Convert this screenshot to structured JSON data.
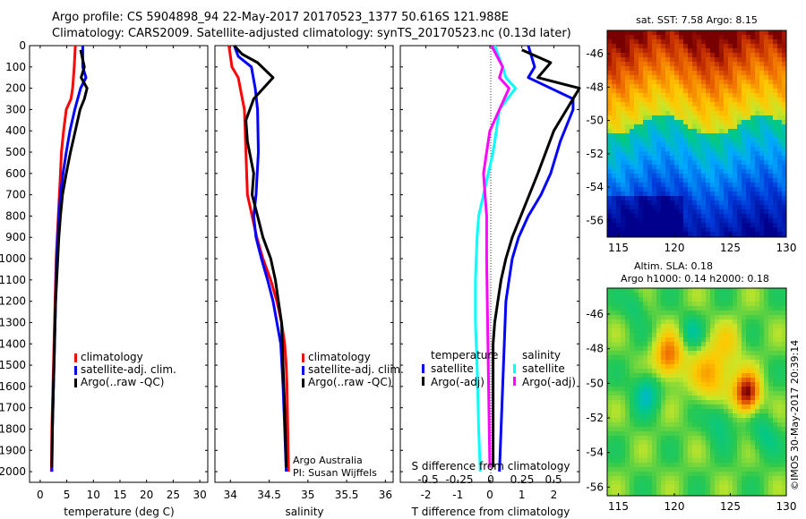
{
  "header": {
    "line1": "Argo profile: CS 5904898_94 22-May-2017 20170523_1377 50.616S 121.988E",
    "line2": "Climatology: CARS2009. Satellite-adjusted climatology: synTS_20170523.nc (0.13d later)"
  },
  "colors": {
    "climatology": "#ff0000",
    "satellite_adj": "#0000ff",
    "argo": "#000000",
    "satellite_s": "#00ffff",
    "argo_s": "#ff00ff"
  },
  "chart_data": [
    {
      "type": "line",
      "xlabel": "temperature (deg C)",
      "xlim": [
        -2,
        31.5
      ],
      "ylim": [
        2050,
        0
      ],
      "yticks": [
        "0",
        "100",
        "200",
        "300",
        "400",
        "500",
        "600",
        "700",
        "800",
        "900",
        "1000",
        "1100",
        "1200",
        "1300",
        "1400",
        "1500",
        "1600",
        "1700",
        "1800",
        "1900",
        "2000"
      ],
      "xticks": [
        "0",
        "5",
        "10",
        "15",
        "20",
        "25",
        "30"
      ],
      "legend": [
        "climatology",
        "satellite-adj. clim.",
        "Argo(..raw -QC)"
      ],
      "series": [
        {
          "name": "climatology",
          "color": "#ff0000",
          "x": [
            6.6,
            6.4,
            6.1,
            5.8,
            4.9,
            4.4,
            4.0,
            3.8,
            3.6,
            3.4,
            3.2,
            3.0,
            2.9,
            2.8,
            2.7,
            2.6,
            2.5,
            2.4,
            2.3,
            2.2,
            2.1
          ],
          "y": [
            0,
            100,
            200,
            250,
            300,
            400,
            500,
            600,
            700,
            800,
            900,
            1000,
            1100,
            1200,
            1300,
            1400,
            1500,
            1600,
            1700,
            1800,
            2000
          ]
        },
        {
          "name": "satellite-adj. clim.",
          "color": "#0000ff",
          "x": [
            8.0,
            8.0,
            8.6,
            7.6,
            6.5,
            5.6,
            4.9,
            4.3,
            3.8,
            3.5,
            3.3,
            3.1,
            3.0,
            2.9,
            2.8,
            2.7,
            2.6,
            2.5,
            2.4,
            2.3,
            2.2
          ],
          "y": [
            0,
            100,
            150,
            200,
            300,
            400,
            500,
            600,
            700,
            800,
            900,
            1000,
            1100,
            1200,
            1300,
            1400,
            1500,
            1600,
            1700,
            1800,
            2000
          ]
        },
        {
          "name": "Argo(..raw -QC)",
          "color": "#000000",
          "x": [
            7.6,
            8.3,
            7.7,
            8.8,
            8.3,
            7.5,
            6.6,
            5.7,
            4.9,
            4.2,
            3.8,
            3.5,
            3.3,
            3.1,
            2.9,
            2.8,
            2.7,
            2.6,
            2.4,
            2.3,
            2.2
          ],
          "y": [
            20,
            100,
            150,
            200,
            250,
            300,
            400,
            500,
            600,
            700,
            800,
            900,
            1000,
            1100,
            1200,
            1300,
            1400,
            1500,
            1700,
            1800,
            1980
          ]
        }
      ]
    },
    {
      "type": "line",
      "xlabel": "salinity",
      "xlim": [
        33.8,
        36.1
      ],
      "ylim": [
        2050,
        0
      ],
      "xticks": [
        "34",
        "34.5",
        "35",
        "35.5",
        "36"
      ],
      "legend": [
        "climatology",
        "satellite-adj. clim.",
        "Argo(..raw -QC)"
      ],
      "annotation": [
        "Argo Australia",
        "PI: Susan Wijffels"
      ],
      "series": [
        {
          "name": "climatology",
          "color": "#ff0000",
          "x": [
            33.98,
            34.02,
            34.1,
            34.18,
            34.2,
            34.22,
            34.28,
            34.34,
            34.42,
            34.52,
            34.6,
            34.66,
            34.7,
            34.72,
            34.73,
            34.74,
            34.75
          ],
          "y": [
            0,
            100,
            150,
            300,
            500,
            700,
            800,
            900,
            1000,
            1100,
            1200,
            1300,
            1400,
            1500,
            1600,
            1800,
            2000
          ]
        },
        {
          "name": "satellite-adj. clim.",
          "color": "#0000ff",
          "x": [
            34.05,
            34.1,
            34.27,
            34.32,
            34.35,
            34.36,
            34.33,
            34.3,
            34.33,
            34.4,
            34.48,
            34.55,
            34.6,
            34.65,
            34.68,
            34.7,
            34.72
          ],
          "y": [
            0,
            50,
            100,
            200,
            300,
            500,
            700,
            800,
            900,
            1000,
            1100,
            1200,
            1300,
            1400,
            1600,
            1800,
            2000
          ]
        },
        {
          "name": "Argo(..raw -QC)",
          "color": "#000000",
          "x": [
            34.05,
            34.15,
            34.35,
            34.55,
            34.3,
            34.2,
            34.22,
            34.3,
            34.28,
            34.35,
            34.42,
            34.52,
            34.58,
            34.62,
            34.66,
            34.68,
            34.7,
            34.72
          ],
          "y": [
            0,
            40,
            80,
            150,
            250,
            350,
            450,
            600,
            700,
            800,
            900,
            1000,
            1100,
            1200,
            1300,
            1500,
            1700,
            1980
          ]
        }
      ]
    },
    {
      "type": "line",
      "xlabel": "T difference from climatology",
      "xlabel_top": "S difference from climatology",
      "xlim": [
        -2.8,
        2.8
      ],
      "ylim": [
        2050,
        0
      ],
      "xticks": [
        "-2",
        "-1",
        "0",
        "1",
        "2"
      ],
      "xticks_top": [
        "-0.5",
        "-0.25",
        "0",
        "0.25",
        "0.5"
      ],
      "legend_titles": [
        "temperature",
        "salinity"
      ],
      "legend": [
        "satellite",
        "Argo(-adj)",
        "satellite",
        "Argo(-adj)"
      ],
      "series": [
        {
          "name": "satellite",
          "color": "#0000ff",
          "x": [
            1.2,
            1.4,
            1.2,
            2.6,
            2.6,
            2.2,
            1.9,
            1.6,
            1.2,
            0.9,
            0.7,
            0.6,
            0.5,
            0.45,
            0.4,
            0.35,
            0.3
          ],
          "y": [
            0,
            100,
            150,
            250,
            300,
            450,
            600,
            700,
            800,
            900,
            1000,
            1100,
            1200,
            1400,
            1600,
            1800,
            2000
          ]
        },
        {
          "name": "Argo(-adj)",
          "color": "#000000",
          "x": [
            1.0,
            1.9,
            1.5,
            2.8,
            2.0,
            1.5,
            1.1,
            0.7,
            0.5,
            0.35,
            0.25,
            0.15,
            0.1,
            0.1,
            0.1,
            0.1
          ],
          "y": [
            20,
            80,
            150,
            200,
            400,
            600,
            750,
            900,
            1000,
            1100,
            1200,
            1300,
            1400,
            1600,
            1800,
            1980
          ]
        },
        {
          "name": "satellite",
          "color": "#00ffff",
          "x": [
            0.15,
            0.4,
            0.5,
            0.8,
            0.3,
            0.1,
            -0.2,
            -0.35,
            -0.4,
            -0.45,
            -0.45,
            -0.4,
            -0.35,
            -0.3
          ],
          "y": [
            0,
            100,
            150,
            200,
            300,
            500,
            700,
            800,
            900,
            1100,
            1300,
            1500,
            1800,
            2000
          ]
        },
        {
          "name": "Argo(-adj)",
          "color": "#ff00ff",
          "x": [
            0.05,
            0.4,
            0.3,
            0.6,
            0.3,
            0.0,
            -0.1,
            -0.2,
            -0.15,
            -0.1,
            -0.1,
            -0.08,
            -0.05,
            -0.02,
            0.0
          ],
          "y": [
            0,
            100,
            150,
            200,
            300,
            400,
            500,
            600,
            700,
            800,
            1000,
            1200,
            1500,
            1800,
            1980
          ]
        }
      ]
    },
    {
      "type": "heatmap",
      "title": "sat. SST: 7.58 Argo: 8.15",
      "xlim": [
        114,
        130
      ],
      "ylim": [
        -57,
        -44.6
      ],
      "xticks": [
        "115",
        "120",
        "125",
        "130"
      ],
      "yticks": [
        "-46",
        "-48",
        "-50",
        "-52",
        "-54",
        "-56"
      ]
    },
    {
      "type": "heatmap",
      "title_lines": [
        "Altim. SLA: 0.18",
        "Argo h1000: 0.14 h2000: 0.18"
      ],
      "xlim": [
        114,
        130
      ],
      "ylim": [
        -56.5,
        -44.5
      ],
      "xticks": [
        "115",
        "120",
        "125",
        "130"
      ],
      "yticks": [
        "-46",
        "-48",
        "-50",
        "-52",
        "-54",
        "-56"
      ],
      "side_label": "©IMOS 30-May-2017 20:39:14"
    }
  ]
}
